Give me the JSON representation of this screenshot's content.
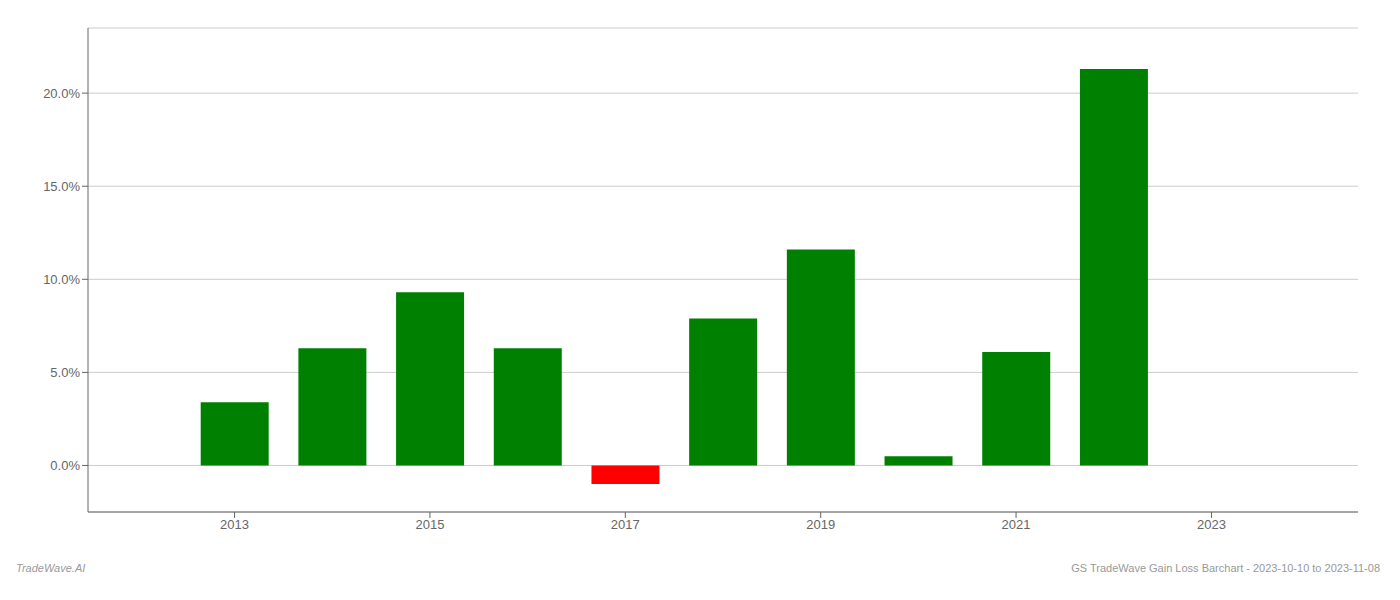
{
  "chart_data": {
    "type": "bar",
    "x": [
      2013,
      2014,
      2015,
      2016,
      2017,
      2018,
      2019,
      2020,
      2021,
      2022
    ],
    "values": [
      0.034,
      0.063,
      0.093,
      0.063,
      -0.01,
      0.079,
      0.116,
      0.005,
      0.061,
      0.213
    ],
    "colors": [
      "#008000",
      "#008000",
      "#008000",
      "#008000",
      "#ff0000",
      "#008000",
      "#008000",
      "#008000",
      "#008000",
      "#008000"
    ],
    "xlim": [
      2011.5,
      2024.5
    ],
    "xticks": [
      2013,
      2015,
      2017,
      2019,
      2021,
      2023
    ],
    "ylim": [
      -0.025,
      0.235
    ],
    "yticks": [
      {
        "value": 0.0,
        "label": "0.0%"
      },
      {
        "value": 0.05,
        "label": "5.0%"
      },
      {
        "value": 0.1,
        "label": "10.0%"
      },
      {
        "value": 0.15,
        "label": "15.0%"
      },
      {
        "value": 0.2,
        "label": "20.0%"
      }
    ],
    "grid": true,
    "annotations": [
      "TradeWave.AI",
      "GS TradeWave Gain Loss Barchart - 2023-10-10 to 2023-11-08"
    ]
  }
}
